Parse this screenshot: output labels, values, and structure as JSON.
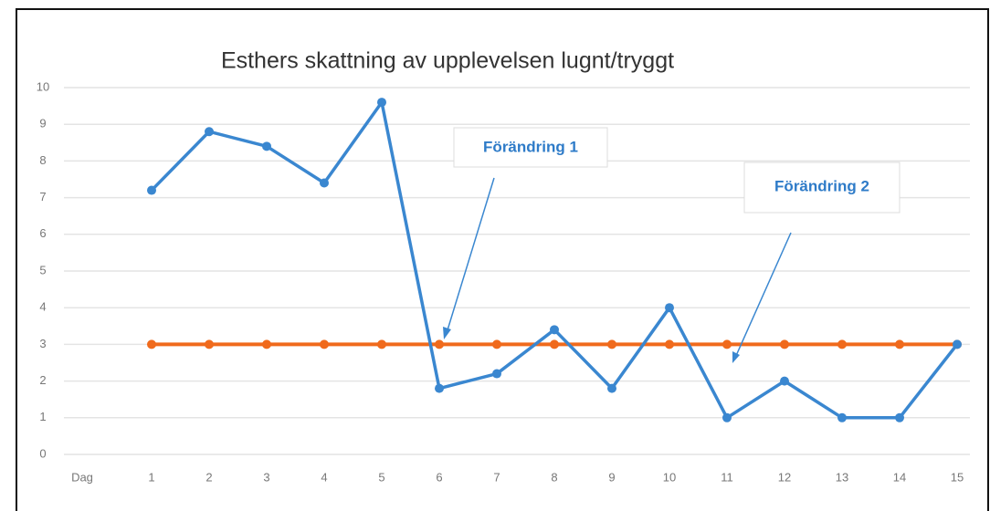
{
  "chart_data": {
    "type": "line",
    "title": "Esthers skattning av upplevelsen lugnt/tryggt",
    "categories": [
      "Dag",
      "1",
      "2",
      "3",
      "4",
      "5",
      "6",
      "7",
      "8",
      "9",
      "10",
      "11",
      "12",
      "13",
      "14",
      "15"
    ],
    "series": [
      {
        "color": "#3a87d0",
        "values": [
          null,
          7.2,
          8.8,
          8.4,
          7.4,
          9.6,
          1.8,
          2.2,
          3.4,
          1.8,
          4,
          1,
          2,
          1,
          1,
          3
        ]
      },
      {
        "color": "#f06a1c",
        "values": [
          null,
          3,
          3,
          3,
          3,
          3,
          3,
          3,
          3,
          3,
          3,
          3,
          3,
          3,
          3,
          3
        ]
      }
    ],
    "ylim": [
      0,
      10
    ],
    "yticks": [
      0,
      1,
      2,
      3,
      4,
      5,
      6,
      7,
      8,
      9,
      10
    ],
    "grid": true,
    "annotations": [
      "Förändring 1",
      "Förändring 2"
    ]
  }
}
